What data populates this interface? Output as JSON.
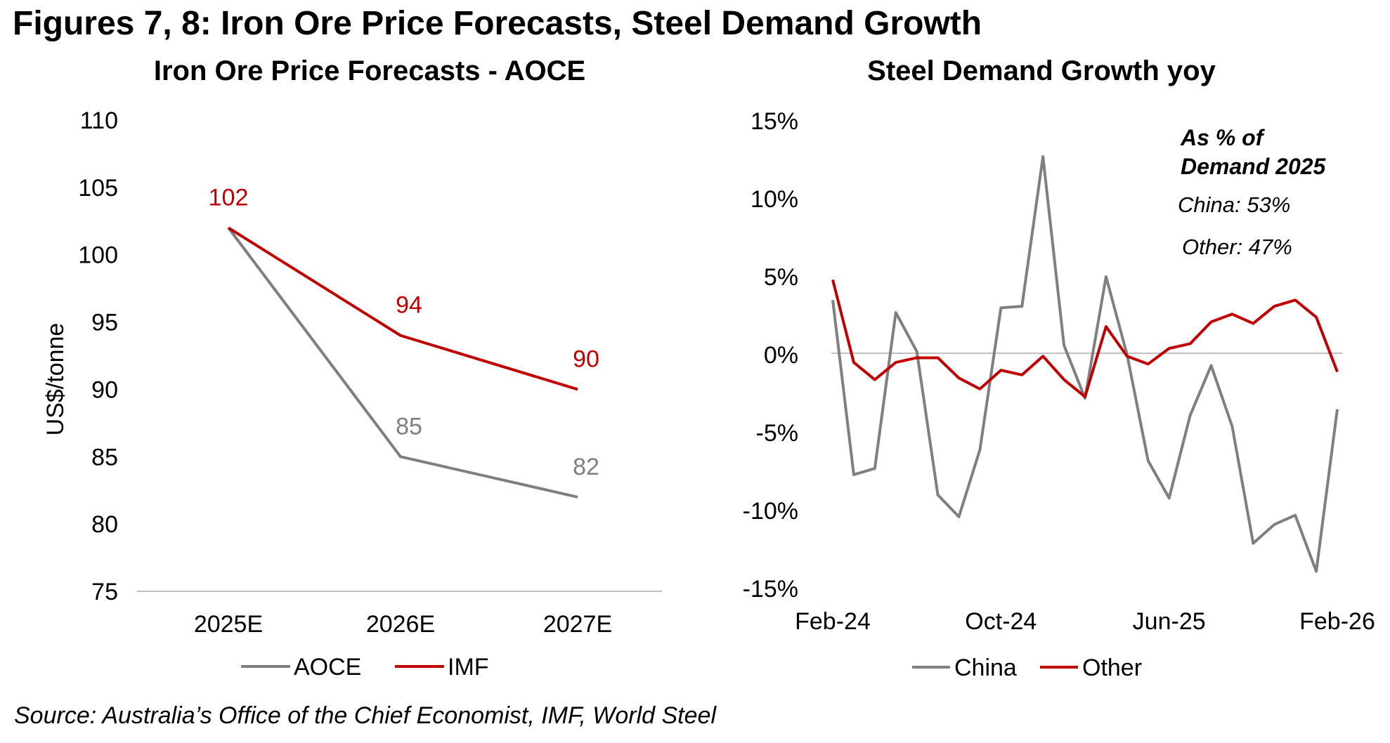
{
  "figure_title": "Figures 7, 8: Iron Ore Price Forecasts, Steel Demand Growth",
  "source": "Source: Australia’s Office of the Chief Economist, IMF, World Steel",
  "colors": {
    "gray": "#7f7f7f",
    "red": "#c00000",
    "axis": "#bfbfbf"
  },
  "chart_data": [
    {
      "type": "line",
      "title": "Iron Ore Price Forecasts - AOCE",
      "xlabel": "",
      "ylabel": "US$/tonne",
      "categories": [
        "2025E",
        "2026E",
        "2027E"
      ],
      "ylim": [
        75,
        110
      ],
      "yticks": [
        "75",
        "80",
        "85",
        "90",
        "95",
        "100",
        "105",
        "110"
      ],
      "grid": false,
      "legend_position": "bottom",
      "series": [
        {
          "name": "AOCE",
          "color": "#7f7f7f",
          "values": [
            102,
            85,
            82
          ],
          "labels": [
            "",
            "85",
            "82"
          ]
        },
        {
          "name": "IMF",
          "color": "#c00000",
          "values": [
            102,
            94,
            90
          ],
          "labels": [
            "102",
            "94",
            "90"
          ]
        }
      ]
    },
    {
      "type": "line",
      "title": "Steel Demand Growth yoy",
      "xlabel": "",
      "ylabel": "",
      "x": [
        "Feb-24",
        "Mar-24",
        "Apr-24",
        "May-24",
        "Jun-24",
        "Jul-24",
        "Aug-24",
        "Sep-24",
        "Oct-24",
        "Nov-24",
        "Dec-24",
        "Jan-25",
        "Feb-25",
        "Mar-25",
        "Apr-25",
        "May-25",
        "Jun-25",
        "Jul-25",
        "Aug-25",
        "Sep-25",
        "Oct-25",
        "Nov-25",
        "Dec-25",
        "Jan-26",
        "Feb-26"
      ],
      "xticks": [
        "Feb-24",
        "Oct-24",
        "Jun-25",
        "Feb-26"
      ],
      "ylim": [
        -15,
        15
      ],
      "yticks": [
        "-15%",
        "-10%",
        "-5%",
        "0%",
        "5%",
        "10%",
        "15%"
      ],
      "grid": false,
      "legend_position": "bottom",
      "series": [
        {
          "name": "China",
          "color": "#7f7f7f",
          "values": [
            3.5,
            -7.7,
            -7.3,
            2.7,
            0.2,
            -9.0,
            -10.4,
            -6.1,
            3.0,
            3.1,
            12.7,
            0.6,
            -2.8,
            5.0,
            0.0,
            -6.8,
            -9.2,
            -3.9,
            -0.7,
            -4.6,
            -12.1,
            -10.9,
            -10.3,
            -13.9,
            -3.5
          ]
        },
        {
          "name": "Other",
          "color": "#c00000",
          "values": [
            4.8,
            -0.5,
            -1.6,
            -0.5,
            -0.2,
            -0.2,
            -1.5,
            -2.2,
            -1.0,
            -1.3,
            -0.1,
            -1.6,
            -2.7,
            1.8,
            -0.1,
            -0.6,
            0.4,
            0.7,
            2.1,
            2.6,
            2.0,
            3.1,
            3.5,
            2.4,
            -1.1
          ]
        }
      ],
      "annotation": {
        "line1": "As % of",
        "line2": "Demand 2025",
        "china": "China: 53%",
        "other": "Other: 47%"
      }
    }
  ]
}
